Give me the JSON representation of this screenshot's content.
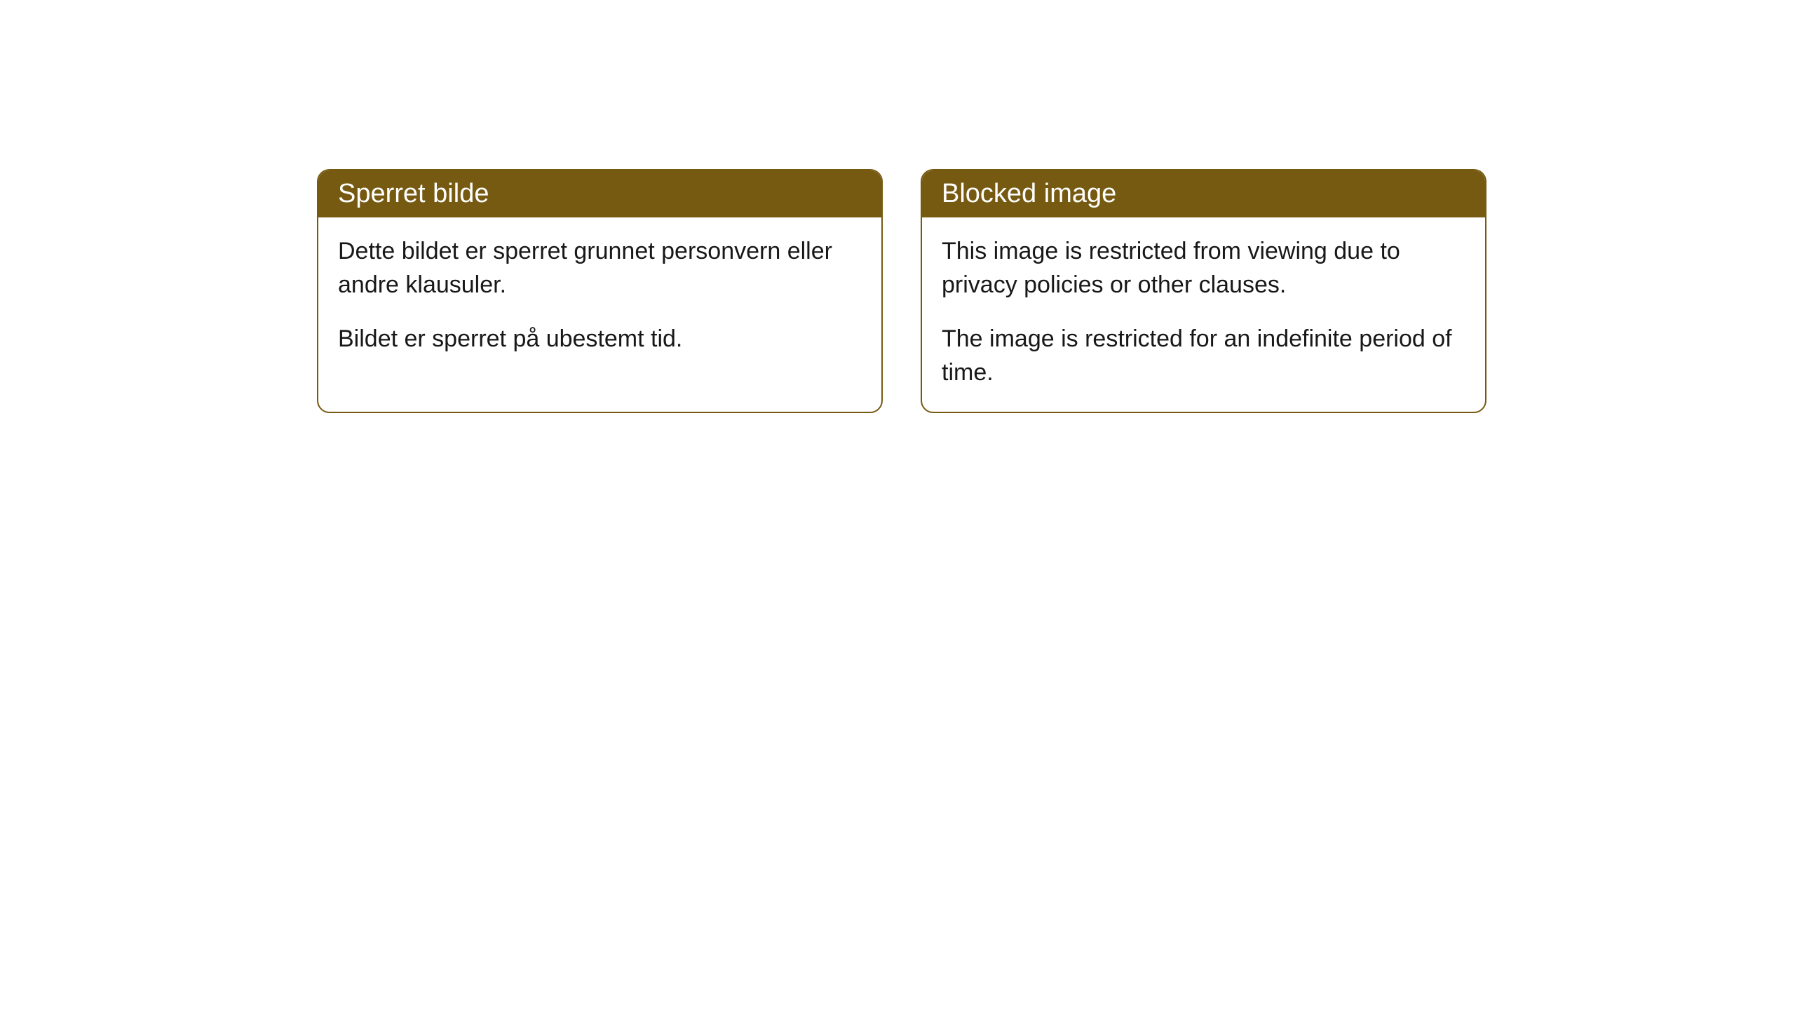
{
  "notices": {
    "left": {
      "title": "Sperret bilde",
      "paragraph1": "Dette bildet er sperret grunnet personvern eller andre klausuler.",
      "paragraph2": "Bildet er sperret på ubestemt tid."
    },
    "right": {
      "title": "Blocked image",
      "paragraph1": "This image is restricted from viewing due to privacy policies or other clauses.",
      "paragraph2": "The image is restricted for an indefinite period of time."
    }
  },
  "styling": {
    "header_background": "#765a12",
    "header_text_color": "#ffffff",
    "border_color": "#765a12",
    "body_text_color": "#181818",
    "background_color": "#ffffff",
    "border_radius": 18,
    "title_fontsize": 38,
    "body_fontsize": 34
  }
}
